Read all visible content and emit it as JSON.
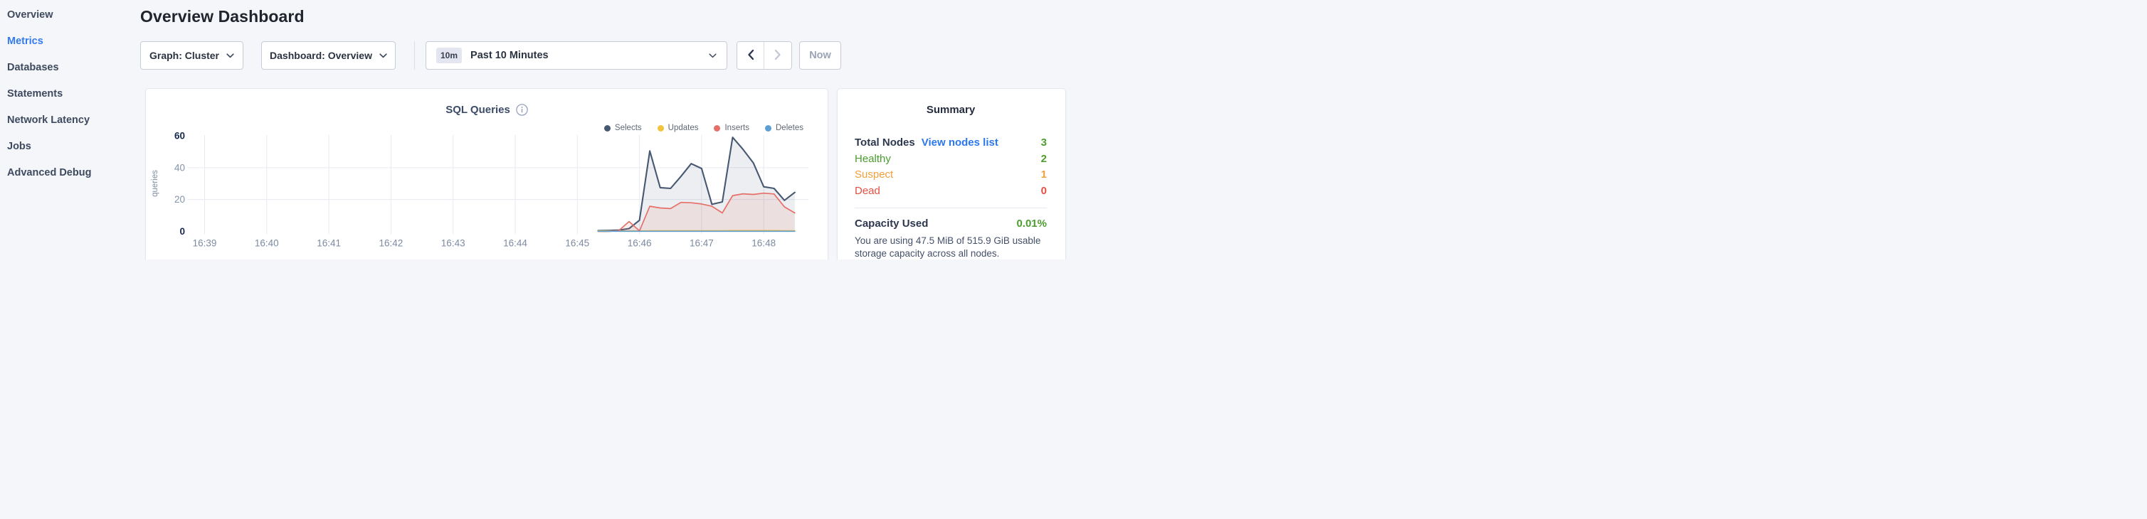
{
  "sidebar": {
    "items": [
      {
        "label": "Overview",
        "active": false
      },
      {
        "label": "Metrics",
        "active": true
      },
      {
        "label": "Databases",
        "active": false
      },
      {
        "label": "Statements",
        "active": false
      },
      {
        "label": "Network Latency",
        "active": false
      },
      {
        "label": "Jobs",
        "active": false
      },
      {
        "label": "Advanced Debug",
        "active": false
      }
    ],
    "active_color": "#337af0"
  },
  "header": {
    "title": "Overview Dashboard"
  },
  "controls": {
    "graph_dropdown": {
      "label": "Graph: Cluster"
    },
    "dashboard_dropdown": {
      "label": "Dashboard: Overview"
    },
    "time_picker": {
      "badge": "10m",
      "label": "Past 10 Minutes"
    },
    "now_label": "Now"
  },
  "chart_card": {
    "title": "SQL Queries"
  },
  "chart_data": {
    "type": "area",
    "title": "SQL Queries",
    "ylabel": "queries",
    "ylim": [
      0,
      60
    ],
    "yticks": [
      0,
      20,
      40,
      60
    ],
    "xticks": [
      "16:39",
      "16:40",
      "16:41",
      "16:42",
      "16:43",
      "16:44",
      "16:45",
      "16:46",
      "16:47",
      "16:48"
    ],
    "grid": true,
    "legend_position": "top-right",
    "x_times": [
      "16:45:20",
      "16:45:30",
      "16:45:40",
      "16:45:50",
      "16:46:00",
      "16:46:10",
      "16:46:20",
      "16:46:30",
      "16:46:40",
      "16:46:50",
      "16:47:00",
      "16:47:10",
      "16:47:20",
      "16:47:30",
      "16:47:40",
      "16:47:50",
      "16:48:00",
      "16:48:10",
      "16:48:20",
      "16:48:30"
    ],
    "series": [
      {
        "name": "Selects",
        "color": "#475872",
        "fill": "rgba(71,88,114,0.10)",
        "values": [
          0.5,
          0.6,
          0.8,
          1.8,
          7,
          50.5,
          27.5,
          27,
          34.5,
          42.5,
          39.5,
          17,
          18.5,
          59,
          51.5,
          43,
          28,
          27,
          19.5,
          24.5
        ]
      },
      {
        "name": "Updates",
        "color": "#f2c43d",
        "fill": "rgba(242,196,61,0.10)",
        "values": [
          0.3,
          0.3,
          0.3,
          0.3,
          0.3,
          0.4,
          0.4,
          0.4,
          0.4,
          0.4,
          0.4,
          0.4,
          0.4,
          0.5,
          0.5,
          0.5,
          0.5,
          0.5,
          0.4,
          0.4
        ]
      },
      {
        "name": "Inserts",
        "color": "#e5706a",
        "fill": "rgba(229,112,106,0.12)",
        "values": [
          0,
          0,
          0.5,
          6.2,
          0.3,
          15.8,
          14.7,
          14.3,
          18.2,
          18,
          17.2,
          15.8,
          11.6,
          22.5,
          23.6,
          23.2,
          24,
          23.5,
          15.4,
          11.6
        ]
      },
      {
        "name": "Deletes",
        "color": "#5b9fd4",
        "fill": "rgba(91,159,212,0.10)",
        "values": [
          0.1,
          0.1,
          0.1,
          0.1,
          0.1,
          0.1,
          0.1,
          0.1,
          0.1,
          0.1,
          0.1,
          0.1,
          0.1,
          0.1,
          0.1,
          0.1,
          0.1,
          0.1,
          0.1,
          0.1
        ]
      }
    ],
    "axis_colors": {
      "strong_tick": "#16294d",
      "weak_tick": "#8493a9",
      "x_tick": "#7c8ba1",
      "grid": "#e7eaf0"
    }
  },
  "summary": {
    "title": "Summary",
    "total_nodes_label": "Total Nodes",
    "view_nodes_label": "View nodes list",
    "total_nodes_value": "3",
    "rows": [
      {
        "label": "Healthy",
        "value": "2",
        "color": "#4a9e2d"
      },
      {
        "label": "Suspect",
        "value": "1",
        "color": "#f1a13b"
      },
      {
        "label": "Dead",
        "value": "0",
        "color": "#e64f44"
      }
    ],
    "capacity_label": "Capacity Used",
    "capacity_value": "0.01%",
    "capacity_description": "You are using 47.5 MiB of 515.9 GiB usable storage capacity across all nodes.",
    "link_color": "#2b77ec",
    "value_color": "#4a9e2d"
  }
}
